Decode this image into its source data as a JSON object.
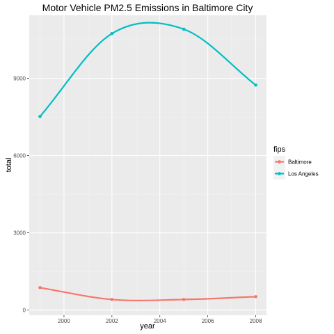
{
  "chart_data": {
    "type": "line",
    "title": "Motor Vehicle PM2.5 Emissions in Baltimore City",
    "xlabel": "year",
    "ylabel": "total",
    "x": [
      1999,
      2002,
      2005,
      2008
    ],
    "xlim": [
      1998.55,
      2008.45
    ],
    "ylim": [
      -200,
      11450
    ],
    "xticks": [
      2000,
      2002,
      2004,
      2006,
      2008
    ],
    "yticks": [
      0,
      3000,
      6000,
      9000
    ],
    "grid": true,
    "legend": {
      "title": "fips",
      "position": "right"
    },
    "series": [
      {
        "name": "Baltimore",
        "color": "#F8766D",
        "values": [
          870,
          410,
          410,
          520
        ]
      },
      {
        "name": "Los Angeles",
        "color": "#00BFC4",
        "values": [
          7520,
          10740,
          10910,
          8740
        ]
      }
    ]
  }
}
